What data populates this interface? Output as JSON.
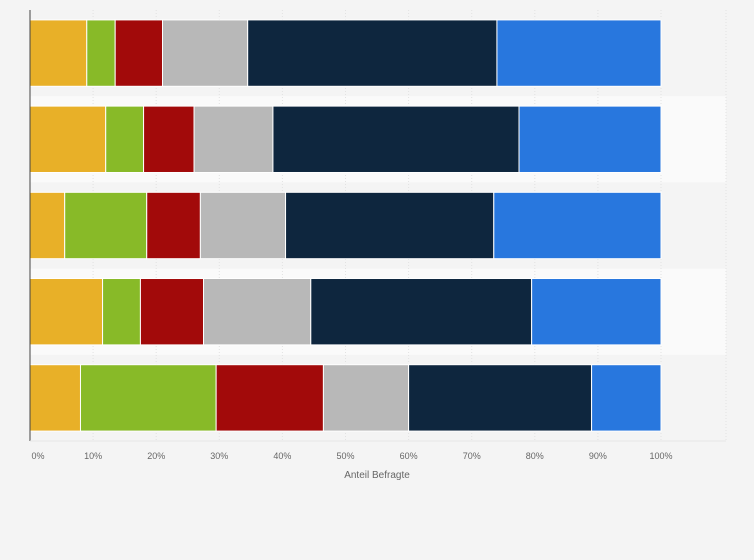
{
  "chart_data": {
    "type": "bar",
    "orientation": "horizontal",
    "stacked": true,
    "title": "",
    "xlabel": "Anteil Befragte",
    "ylabel": "",
    "xlim": [
      0,
      100
    ],
    "x_ticks": [
      "0%",
      "10%",
      "20%",
      "30%",
      "40%",
      "50%",
      "60%",
      "70%",
      "80%",
      "90%",
      "100%"
    ],
    "grid": true,
    "legend": "none",
    "categories": [
      "",
      "",
      "",
      "",
      ""
    ],
    "series": [
      {
        "color": "#e8b028",
        "values": [
          9,
          12,
          5.5,
          11.5,
          8
        ]
      },
      {
        "color": "#88ba28",
        "values": [
          4.5,
          6,
          13,
          6,
          21.5
        ]
      },
      {
        "color": "#a20a0a",
        "values": [
          7.5,
          8,
          8.5,
          10,
          17
        ]
      },
      {
        "color": "#b8b8b8",
        "values": [
          13.5,
          12.5,
          13.5,
          17,
          13.5
        ]
      },
      {
        "color": "#0e263e",
        "values": [
          39.5,
          39,
          33,
          35,
          29
        ]
      },
      {
        "color": "#2877de",
        "values": [
          26,
          22.5,
          26.5,
          20.5,
          11
        ]
      }
    ]
  }
}
